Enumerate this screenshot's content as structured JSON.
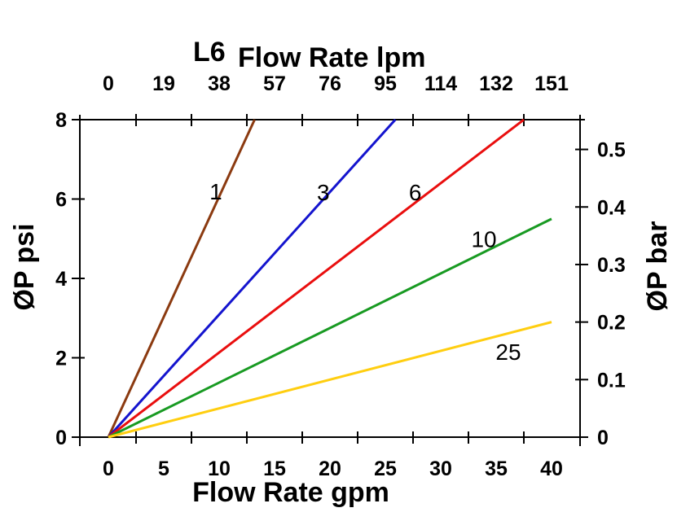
{
  "chart_data": {
    "type": "line",
    "model_label": "L6",
    "top_axis": {
      "title": "Flow Rate lpm",
      "tick_labels": [
        "0",
        "19",
        "38",
        "57",
        "76",
        "95",
        "114",
        "132",
        "151"
      ],
      "tick_values_gpm": [
        0,
        5,
        10,
        15,
        20,
        25,
        30,
        35,
        40
      ]
    },
    "bottom_axis": {
      "title": "Flow Rate gpm",
      "tick_labels": [
        "0",
        "5",
        "10",
        "15",
        "20",
        "25",
        "30",
        "35",
        "40"
      ],
      "tick_values_gpm": [
        0,
        5,
        10,
        15,
        20,
        25,
        30,
        35,
        40
      ],
      "minor_tick_values_gpm": [
        2.5,
        7.5,
        12.5,
        17.5,
        22.5,
        27.5,
        32.5,
        37.5
      ]
    },
    "left_axis": {
      "title": "ØP psi",
      "tick_labels": [
        "0",
        "2",
        "4",
        "6",
        "8"
      ],
      "tick_values_psi": [
        0,
        2,
        4,
        6,
        8
      ],
      "range": [
        0,
        8
      ]
    },
    "right_axis": {
      "title": "ØP bar",
      "tick_labels": [
        "0",
        "0.1",
        "0.2",
        "0.3",
        "0.4",
        "0.5"
      ],
      "tick_values_bar": [
        0,
        0.1,
        0.2,
        0.3,
        0.4,
        0.5
      ],
      "psi_per_bar": 14.5,
      "range": [
        0,
        0.55
      ]
    },
    "xlim_gpm": [
      0,
      40
    ],
    "grid": false,
    "axis_color": "#000000",
    "series": [
      {
        "label": "1",
        "color": "#8B3A10",
        "points_gpm_psi": [
          [
            0,
            0
          ],
          [
            13.2,
            8
          ]
        ],
        "label_pos_gpm_psi": [
          9.7,
          6.2
        ]
      },
      {
        "label": "3",
        "color": "#1414CE",
        "points_gpm_psi": [
          [
            0,
            0
          ],
          [
            25.9,
            8
          ]
        ],
        "label_pos_gpm_psi": [
          19.4,
          6.17
        ]
      },
      {
        "label": "6",
        "color": "#E90E0E",
        "points_gpm_psi": [
          [
            0,
            0
          ],
          [
            37.5,
            8
          ]
        ],
        "label_pos_gpm_psi": [
          27.7,
          6.17
        ]
      },
      {
        "label": "10",
        "color": "#189A22",
        "points_gpm_psi": [
          [
            0,
            0
          ],
          [
            40,
            5.5
          ]
        ],
        "label_pos_gpm_psi": [
          33.9,
          5.0
        ]
      },
      {
        "label": "25",
        "color": "#FFCE10",
        "points_gpm_psi": [
          [
            0,
            0
          ],
          [
            40,
            2.9
          ]
        ],
        "label_pos_gpm_psi": [
          36.1,
          2.15
        ]
      }
    ]
  }
}
